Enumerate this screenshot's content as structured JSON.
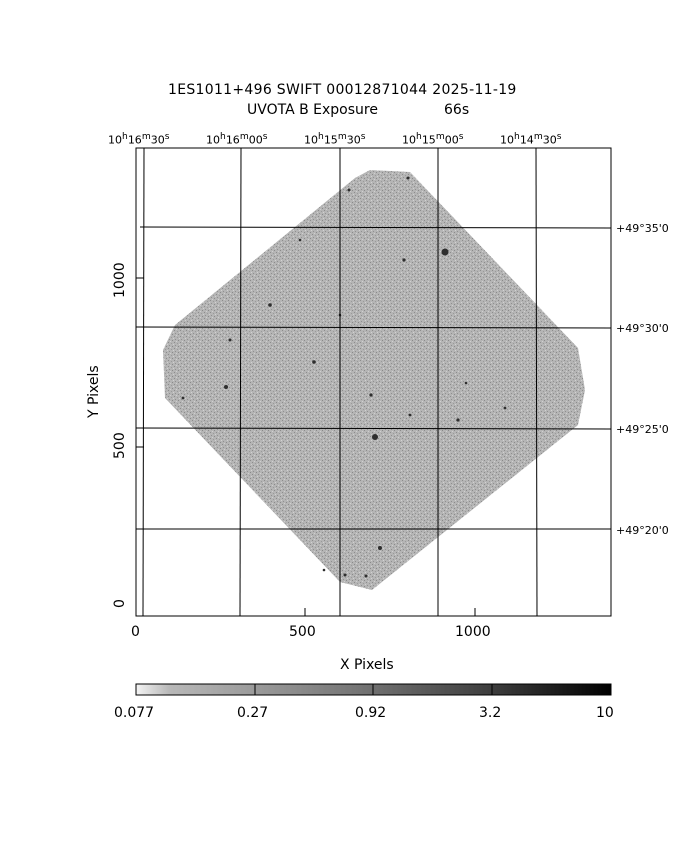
{
  "title": {
    "line1": "1ES1011+496 SWIFT 00012871044 2025-11-19",
    "line2_label": "UVOTA B Exposure",
    "line2_exposure": "66s"
  },
  "ra_ticks": [
    {
      "h": "10",
      "m": "16",
      "s": "30"
    },
    {
      "h": "10",
      "m": "16",
      "s": "00"
    },
    {
      "h": "10",
      "m": "15",
      "s": "30"
    },
    {
      "h": "10",
      "m": "15",
      "s": "00"
    },
    {
      "h": "10",
      "m": "14",
      "s": "30"
    }
  ],
  "dec_ticks": [
    "+49°35'0",
    "+49°30'0",
    "+49°25'0",
    "+49°20'0"
  ],
  "x_ticks": [
    "0",
    "500",
    "1000"
  ],
  "y_ticks": [
    "0",
    "500",
    "1000"
  ],
  "axes": {
    "xlabel": "X Pixels",
    "ylabel": "Y Pixels",
    "xlim": [
      0,
      1400
    ],
    "ylim": [
      0,
      1400
    ]
  },
  "colorbar": {
    "labels": [
      "0.077",
      "0.27",
      "0.92",
      "3.2",
      "10"
    ],
    "colors": {
      "low": "#f2f2f2",
      "mid": "#8a8a8a",
      "high": "#000000"
    }
  },
  "image": {
    "field_color": "#a9a9a9",
    "source_color": "#333333"
  }
}
